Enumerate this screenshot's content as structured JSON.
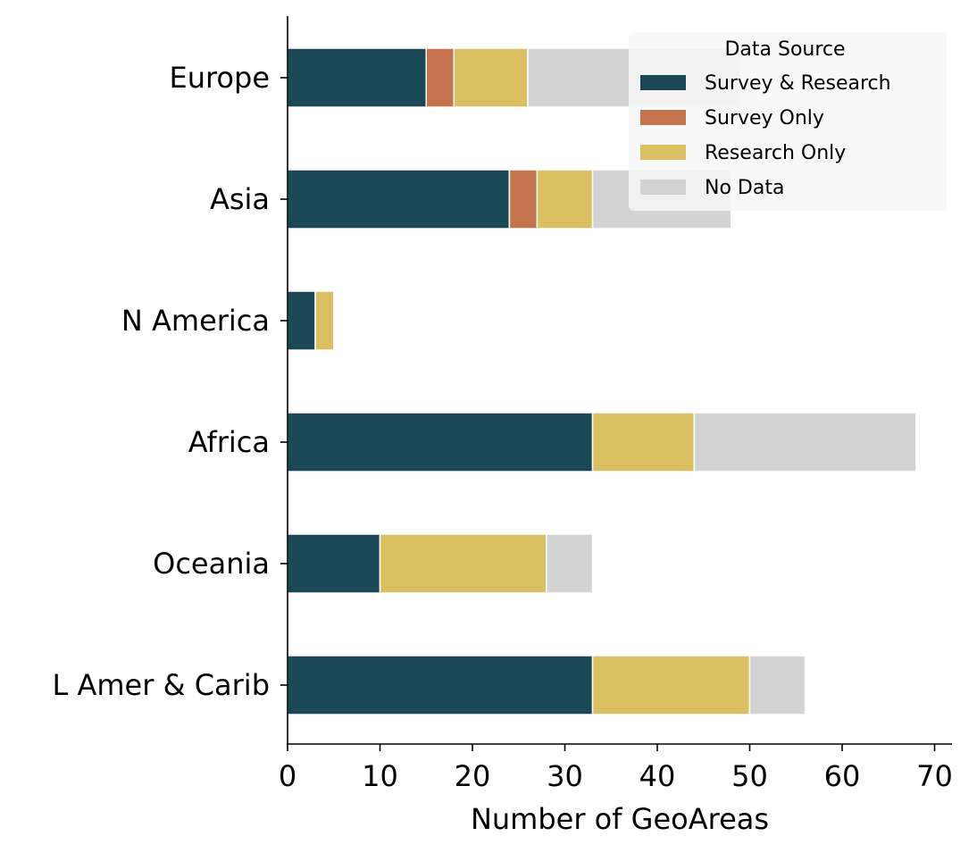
{
  "chart_data": {
    "type": "bar",
    "orientation": "horizontal",
    "stacked": true,
    "categories": [
      "Europe",
      "Asia",
      "N America",
      "Africa",
      "Oceania",
      "L Amer & Carib"
    ],
    "series": [
      {
        "name": "Survey & Research",
        "color": "#1b4857",
        "values": [
          15,
          24,
          3,
          33,
          10,
          33
        ]
      },
      {
        "name": "Survey Only",
        "color": "#c5734c",
        "values": [
          3,
          3,
          0,
          0,
          0,
          0
        ]
      },
      {
        "name": "Research Only",
        "color": "#dbc062",
        "values": [
          8,
          6,
          2,
          11,
          18,
          17
        ]
      },
      {
        "name": "No Data",
        "color": "#d3d3d3",
        "values": [
          23,
          15,
          0,
          24,
          5,
          6
        ]
      }
    ],
    "xlabel": "Number of GeoAreas",
    "ylabel": "",
    "xlim": [
      0,
      71.5
    ],
    "xticks": [
      "0",
      "10",
      "20",
      "30",
      "40",
      "50",
      "60",
      "70"
    ],
    "grid": false,
    "legend": {
      "title": "Data Source",
      "placement": "top-right"
    }
  }
}
